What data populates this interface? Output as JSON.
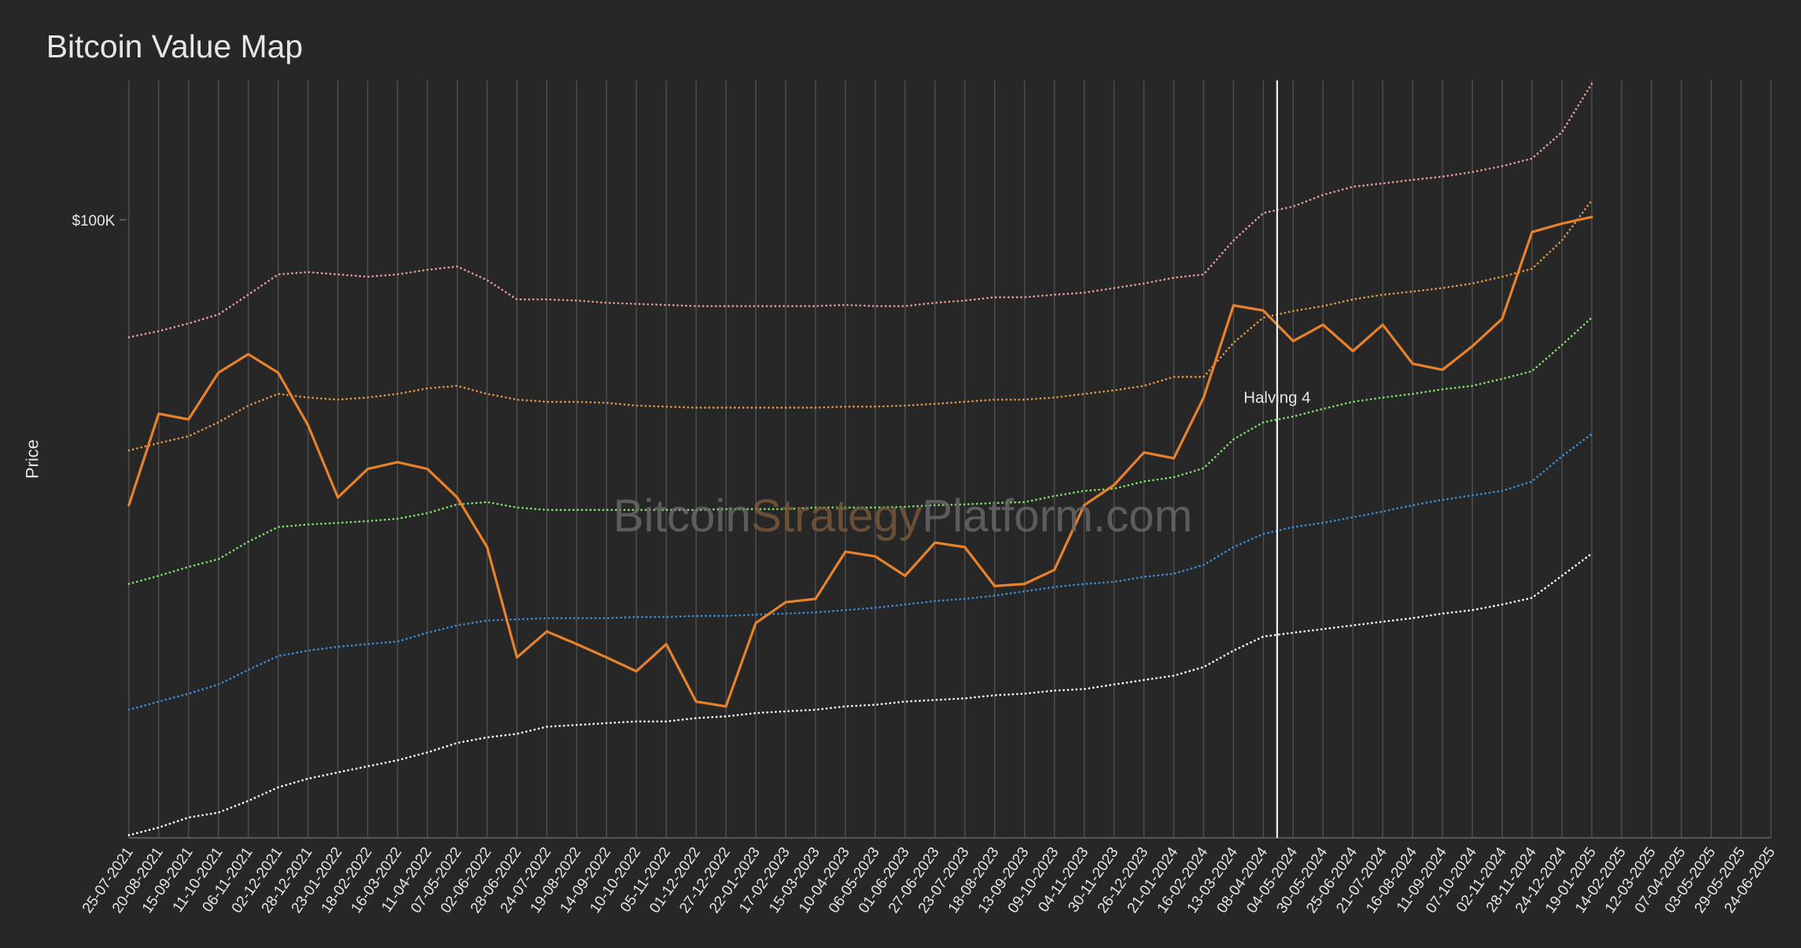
{
  "chart_data": {
    "type": "line",
    "title": "Bitcoin Value Map",
    "y_label": "Price",
    "watermark": [
      "Bitcoin",
      "Strategy",
      "Platform.com"
    ],
    "log_scale": true,
    "ylim": [
      10300,
      167000
    ],
    "yticks": [
      {
        "value": 100000,
        "label": "$100K"
      }
    ],
    "grid": true,
    "x": [
      "25-07-2021",
      "20-08-2021",
      "15-09-2021",
      "11-10-2021",
      "06-11-2021",
      "02-12-2021",
      "28-12-2021",
      "23-01-2022",
      "18-02-2022",
      "16-03-2022",
      "11-04-2022",
      "07-05-2022",
      "02-06-2022",
      "28-06-2022",
      "24-07-2022",
      "19-08-2022",
      "14-09-2022",
      "10-10-2022",
      "05-11-2022",
      "01-12-2022",
      "27-12-2022",
      "22-01-2023",
      "17-02-2023",
      "15-03-2023",
      "10-04-2023",
      "06-05-2023",
      "01-06-2023",
      "27-06-2023",
      "23-07-2023",
      "18-08-2023",
      "13-09-2023",
      "09-10-2023",
      "04-11-2023",
      "30-11-2023",
      "26-12-2023",
      "21-01-2024",
      "16-02-2024",
      "13-03-2024",
      "08-04-2024",
      "04-05-2024",
      "30-05-2024",
      "25-06-2024",
      "21-07-2024",
      "16-08-2024",
      "11-09-2024",
      "07-10-2024",
      "02-11-2024",
      "28-11-2024",
      "24-12-2024",
      "19-01-2025",
      "14-02-2025",
      "12-03-2025",
      "07-04-2025",
      "03-05-2025",
      "29-05-2025",
      "24-06-2025"
    ],
    "series": [
      {
        "color": "#e89a9a",
        "style": "dotted",
        "values": [
          64900,
          66400,
          68300,
          70600,
          75900,
          81800,
          82500,
          81800,
          81100,
          81800,
          83200,
          84200,
          80100,
          74600,
          74600,
          74300,
          73700,
          73400,
          73100,
          72800,
          72800,
          72800,
          72800,
          72800,
          73100,
          72800,
          72800,
          73700,
          74300,
          75200,
          75200,
          75900,
          76500,
          77800,
          79100,
          80800,
          81800,
          92700,
          102500,
          105000,
          109600,
          112900,
          114300,
          115800,
          117200,
          119200,
          121800,
          125300,
          138000,
          165000,
          null,
          null,
          null,
          null,
          null,
          null
        ]
      },
      {
        "color": "#e0964a",
        "style": "dotted",
        "values": [
          42800,
          44000,
          45100,
          47500,
          50500,
          52700,
          52000,
          51600,
          52000,
          52700,
          53800,
          54300,
          52700,
          51600,
          51200,
          51200,
          51000,
          50500,
          50300,
          50100,
          50100,
          50100,
          50100,
          50100,
          50300,
          50300,
          50500,
          50800,
          51200,
          51600,
          51600,
          52000,
          52700,
          53400,
          54300,
          56100,
          56100,
          63600,
          69800,
          71500,
          72800,
          74600,
          75900,
          76800,
          77800,
          79100,
          81100,
          83500,
          92700,
          107400,
          null,
          null,
          null,
          null,
          null,
          null
        ]
      },
      {
        "color": "#7ee06a",
        "style": "dotted",
        "values": [
          26200,
          27000,
          27900,
          28700,
          30600,
          32300,
          32600,
          32800,
          33000,
          33300,
          34000,
          35100,
          35400,
          34700,
          34400,
          34400,
          34400,
          34400,
          34400,
          34400,
          34500,
          34500,
          34500,
          34700,
          34700,
          34700,
          34800,
          35000,
          35100,
          35300,
          35400,
          36200,
          36900,
          37200,
          38200,
          38800,
          40100,
          44600,
          47500,
          48500,
          49900,
          51200,
          52000,
          52700,
          53600,
          54300,
          55700,
          57300,
          63100,
          69800,
          null,
          null,
          null,
          null,
          null,
          null
        ]
      },
      {
        "color": "#3a8fd6",
        "style": "dotted",
        "values": [
          16500,
          17000,
          17500,
          18100,
          19100,
          20100,
          20500,
          20800,
          21000,
          21200,
          21900,
          22500,
          22900,
          23000,
          23100,
          23100,
          23100,
          23200,
          23200,
          23300,
          23300,
          23400,
          23500,
          23600,
          23800,
          24000,
          24300,
          24600,
          24800,
          25100,
          25500,
          25900,
          26200,
          26400,
          26900,
          27200,
          28100,
          30000,
          31500,
          32300,
          32800,
          33500,
          34200,
          35000,
          35700,
          36300,
          36900,
          38200,
          41900,
          45500,
          null,
          null,
          null,
          null,
          null,
          null
        ]
      },
      {
        "color": "#ffffff",
        "style": "dotted",
        "values": [
          10400,
          10700,
          11100,
          11300,
          11800,
          12400,
          12800,
          13100,
          13400,
          13700,
          14100,
          14600,
          14900,
          15100,
          15500,
          15600,
          15700,
          15800,
          15800,
          16000,
          16100,
          16300,
          16400,
          16500,
          16700,
          16800,
          17000,
          17100,
          17200,
          17400,
          17500,
          17700,
          17800,
          18100,
          18400,
          18700,
          19300,
          20500,
          21600,
          21900,
          22200,
          22500,
          22800,
          23100,
          23500,
          23800,
          24300,
          24900,
          27000,
          29300,
          null,
          null,
          null,
          null,
          null,
          null
        ]
      },
      {
        "color": "#e8822a",
        "style": "solid",
        "values": [
          35000,
          49000,
          48000,
          57000,
          61000,
          57000,
          47000,
          36000,
          40000,
          41000,
          40000,
          36000,
          30000,
          20000,
          22000,
          21000,
          20000,
          19000,
          21000,
          17000,
          16700,
          22700,
          24500,
          24800,
          29500,
          29000,
          27000,
          30500,
          30000,
          26000,
          26200,
          27600,
          35000,
          37700,
          42500,
          41600,
          52000,
          73000,
          71600,
          64000,
          68000,
          61700,
          68000,
          58900,
          57600,
          62800,
          69500,
          95600,
          98600,
          101000,
          null,
          null,
          null,
          null,
          null,
          null
        ]
      }
    ],
    "annotations": [
      {
        "text": "Halving 4",
        "x": "20-04-2024"
      }
    ]
  }
}
